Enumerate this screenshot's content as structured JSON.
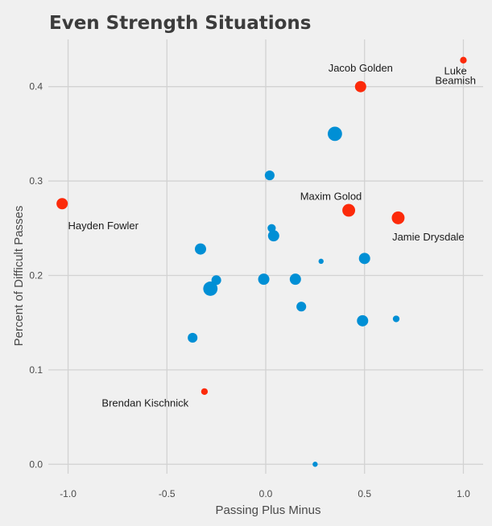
{
  "chart_data": {
    "type": "scatter",
    "title": "Even Strength Situations",
    "xlabel": "Passing Plus Minus",
    "ylabel": "Percent of Difficult Passes",
    "xlim": [
      -1.1,
      1.1
    ],
    "ylim": [
      -0.01,
      0.45
    ],
    "x_ticks": [
      -1.0,
      -0.5,
      0.0,
      0.5,
      1.0
    ],
    "x_tick_labels": [
      "-1.0",
      "-0.5",
      "0.0",
      "0.5",
      "1.0"
    ],
    "y_ticks": [
      0.0,
      0.1,
      0.2,
      0.3,
      0.4
    ],
    "y_tick_labels": [
      "0.0",
      "0.1",
      "0.2",
      "0.3",
      "0.4"
    ],
    "grid": true,
    "colors": {
      "default": "#008fd5",
      "highlight": "#fc2a0a"
    },
    "points": [
      {
        "x": -1.03,
        "y": 0.276,
        "size": 6,
        "highlight": true
      },
      {
        "x": 0.48,
        "y": 0.4,
        "size": 6,
        "highlight": true
      },
      {
        "x": 1.0,
        "y": 0.428,
        "size": 3,
        "highlight": true
      },
      {
        "x": 0.42,
        "y": 0.269,
        "size": 7,
        "highlight": true
      },
      {
        "x": 0.67,
        "y": 0.261,
        "size": 7,
        "highlight": true
      },
      {
        "x": -0.31,
        "y": 0.077,
        "size": 3,
        "highlight": true
      },
      {
        "x": 0.35,
        "y": 0.35,
        "size": 8,
        "highlight": false
      },
      {
        "x": 0.02,
        "y": 0.306,
        "size": 5,
        "highlight": false
      },
      {
        "x": 0.03,
        "y": 0.25,
        "size": 4,
        "highlight": false
      },
      {
        "x": 0.04,
        "y": 0.242,
        "size": 6,
        "highlight": false
      },
      {
        "x": -0.33,
        "y": 0.228,
        "size": 6,
        "highlight": false
      },
      {
        "x": 0.28,
        "y": 0.215,
        "size": 2,
        "highlight": false
      },
      {
        "x": 0.5,
        "y": 0.218,
        "size": 6,
        "highlight": false
      },
      {
        "x": -0.25,
        "y": 0.195,
        "size": 5,
        "highlight": false
      },
      {
        "x": -0.28,
        "y": 0.186,
        "size": 8,
        "highlight": false
      },
      {
        "x": -0.01,
        "y": 0.196,
        "size": 6,
        "highlight": false
      },
      {
        "x": 0.15,
        "y": 0.196,
        "size": 6,
        "highlight": false
      },
      {
        "x": 0.18,
        "y": 0.167,
        "size": 5,
        "highlight": false
      },
      {
        "x": 0.49,
        "y": 0.152,
        "size": 6,
        "highlight": false
      },
      {
        "x": 0.66,
        "y": 0.154,
        "size": 3,
        "highlight": false
      },
      {
        "x": -0.37,
        "y": 0.134,
        "size": 5,
        "highlight": false
      },
      {
        "x": 0.25,
        "y": 0.0,
        "size": 2,
        "highlight": false
      }
    ],
    "annotations": [
      {
        "lines": [
          "Hayden Fowler"
        ],
        "x": -1.0,
        "y": 0.249,
        "anchor": "start"
      },
      {
        "lines": [
          "Jacob Golden"
        ],
        "x": 0.48,
        "y": 0.416,
        "anchor": "middle"
      },
      {
        "lines": [
          "Luke",
          "Beamish"
        ],
        "x": 0.96,
        "y": 0.413,
        "anchor": "middle"
      },
      {
        "lines": [
          "Maxim Golod"
        ],
        "x": 0.33,
        "y": 0.28,
        "anchor": "middle"
      },
      {
        "lines": [
          "Jamie Drysdale"
        ],
        "x": 0.64,
        "y": 0.237,
        "anchor": "start"
      },
      {
        "lines": [
          "Brendan Kischnick"
        ],
        "x": -0.61,
        "y": 0.061,
        "anchor": "middle"
      }
    ]
  }
}
